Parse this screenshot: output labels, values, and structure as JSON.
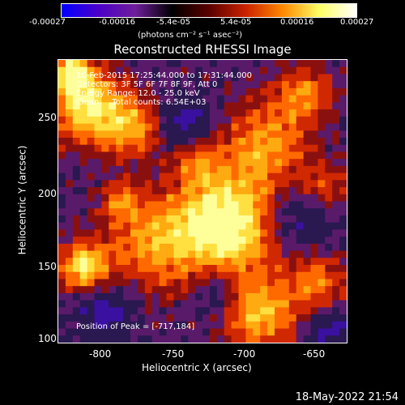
{
  "colorbar": {
    "tick_labels": [
      "-0.00027",
      "-0.00016",
      "-5.4e-05",
      "5.4e-05",
      "0.00016",
      "0.00027"
    ],
    "unit_label": "(photons cm⁻² s⁻¹ asec⁻²)",
    "colors": [
      "#0000ff",
      "#4b00c8",
      "#6f1e9a",
      "#000000",
      "#5a0000",
      "#cc2200",
      "#ff8800",
      "#ffff66",
      "#ffffff"
    ]
  },
  "title": "Reconstructed RHESSI Image",
  "annotations": {
    "time": "10-Feb-2015 17:25:44.000 to 17:31:44.000",
    "detectors": "Detectors: 3F 5F 6F 7F 8F 9F, Att 0",
    "energy": "Energy Range: 12.0 - 25.0 keV",
    "clean": "Clean     Total counts: 6.54E+03",
    "peak": "Position of Peak = [-717,184]"
  },
  "axes": {
    "xlabel": "Heliocentric X (arcsec)",
    "ylabel": "Heliocentric Y (arcsec)",
    "xticks": [
      "-800",
      "-750",
      "-700",
      "-650"
    ],
    "yticks": [
      "250",
      "200",
      "150",
      "100"
    ]
  },
  "footer": {
    "timestamp": "18-May-2022 21:54"
  }
}
